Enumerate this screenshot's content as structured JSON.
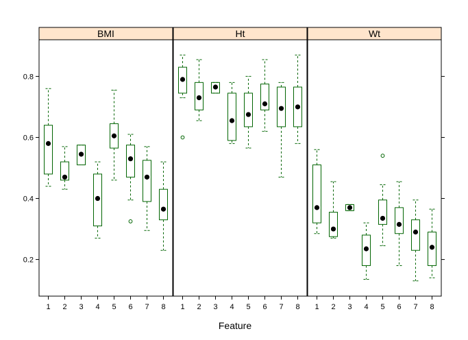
{
  "chart_data": {
    "type": "boxplot",
    "layout": "lattice 3 panels in one row",
    "xlabel": "Feature",
    "ylabel": "",
    "ylim": [
      0.08,
      0.92
    ],
    "y_ticks": [
      0.2,
      0.4,
      0.6,
      0.8
    ],
    "y_tick_labels": [
      "0.2",
      "0.4",
      "0.6",
      "0.8"
    ],
    "categories": [
      "1",
      "2",
      "3",
      "4",
      "5",
      "6",
      "7",
      "8"
    ],
    "colors": {
      "box": "#006400",
      "strip": "#ffe5cc",
      "median": "#000000",
      "frame": "#000000"
    },
    "panels": [
      {
        "name": "BMI",
        "boxes": [
          {
            "cat": "1",
            "min": 0.44,
            "q1": 0.48,
            "median": 0.58,
            "q3": 0.64,
            "max": 0.76,
            "outliers": []
          },
          {
            "cat": "2",
            "min": 0.43,
            "q1": 0.46,
            "median": 0.47,
            "q3": 0.52,
            "max": 0.57,
            "outliers": []
          },
          {
            "cat": "3",
            "min": 0.51,
            "q1": 0.51,
            "median": 0.545,
            "q3": 0.575,
            "max": 0.575,
            "outliers": []
          },
          {
            "cat": "4",
            "min": 0.27,
            "q1": 0.31,
            "median": 0.4,
            "q3": 0.48,
            "max": 0.52,
            "outliers": []
          },
          {
            "cat": "5",
            "min": 0.46,
            "q1": 0.565,
            "median": 0.605,
            "q3": 0.645,
            "max": 0.755,
            "outliers": []
          },
          {
            "cat": "6",
            "min": 0.395,
            "q1": 0.47,
            "median": 0.53,
            "q3": 0.575,
            "max": 0.61,
            "outliers": [
              0.325
            ]
          },
          {
            "cat": "7",
            "min": 0.295,
            "q1": 0.39,
            "median": 0.47,
            "q3": 0.525,
            "max": 0.57,
            "outliers": []
          },
          {
            "cat": "8",
            "min": 0.23,
            "q1": 0.33,
            "median": 0.365,
            "q3": 0.43,
            "max": 0.52,
            "outliers": []
          }
        ]
      },
      {
        "name": "Ht",
        "boxes": [
          {
            "cat": "1",
            "min": 0.73,
            "q1": 0.745,
            "median": 0.79,
            "q3": 0.83,
            "max": 0.87,
            "outliers": [
              0.6
            ]
          },
          {
            "cat": "2",
            "min": 0.655,
            "q1": 0.69,
            "median": 0.73,
            "q3": 0.78,
            "max": 0.855,
            "outliers": []
          },
          {
            "cat": "3",
            "min": 0.745,
            "q1": 0.745,
            "median": 0.765,
            "q3": 0.78,
            "max": 0.78,
            "outliers": []
          },
          {
            "cat": "4",
            "min": 0.58,
            "q1": 0.59,
            "median": 0.655,
            "q3": 0.745,
            "max": 0.78,
            "outliers": []
          },
          {
            "cat": "5",
            "min": 0.565,
            "q1": 0.635,
            "median": 0.675,
            "q3": 0.745,
            "max": 0.8,
            "outliers": []
          },
          {
            "cat": "6",
            "min": 0.62,
            "q1": 0.69,
            "median": 0.71,
            "q3": 0.775,
            "max": 0.855,
            "outliers": []
          },
          {
            "cat": "7",
            "min": 0.47,
            "q1": 0.635,
            "median": 0.695,
            "q3": 0.765,
            "max": 0.78,
            "outliers": []
          },
          {
            "cat": "8",
            "min": 0.58,
            "q1": 0.635,
            "median": 0.7,
            "q3": 0.765,
            "max": 0.87,
            "outliers": []
          }
        ]
      },
      {
        "name": "Wt",
        "boxes": [
          {
            "cat": "1",
            "min": 0.285,
            "q1": 0.32,
            "median": 0.37,
            "q3": 0.51,
            "max": 0.56,
            "outliers": []
          },
          {
            "cat": "2",
            "min": 0.27,
            "q1": 0.275,
            "median": 0.3,
            "q3": 0.355,
            "max": 0.455,
            "outliers": []
          },
          {
            "cat": "3",
            "min": 0.36,
            "q1": 0.36,
            "median": 0.37,
            "q3": 0.38,
            "max": 0.38,
            "outliers": []
          },
          {
            "cat": "4",
            "min": 0.135,
            "q1": 0.18,
            "median": 0.235,
            "q3": 0.28,
            "max": 0.32,
            "outliers": []
          },
          {
            "cat": "5",
            "min": 0.245,
            "q1": 0.315,
            "median": 0.335,
            "q3": 0.395,
            "max": 0.445,
            "outliers": [
              0.54
            ]
          },
          {
            "cat": "6",
            "min": 0.18,
            "q1": 0.285,
            "median": 0.315,
            "q3": 0.37,
            "max": 0.455,
            "outliers": []
          },
          {
            "cat": "7",
            "min": 0.13,
            "q1": 0.23,
            "median": 0.29,
            "q3": 0.33,
            "max": 0.395,
            "outliers": []
          },
          {
            "cat": "8",
            "min": 0.14,
            "q1": 0.18,
            "median": 0.24,
            "q3": 0.29,
            "max": 0.365,
            "outliers": []
          }
        ]
      }
    ]
  }
}
